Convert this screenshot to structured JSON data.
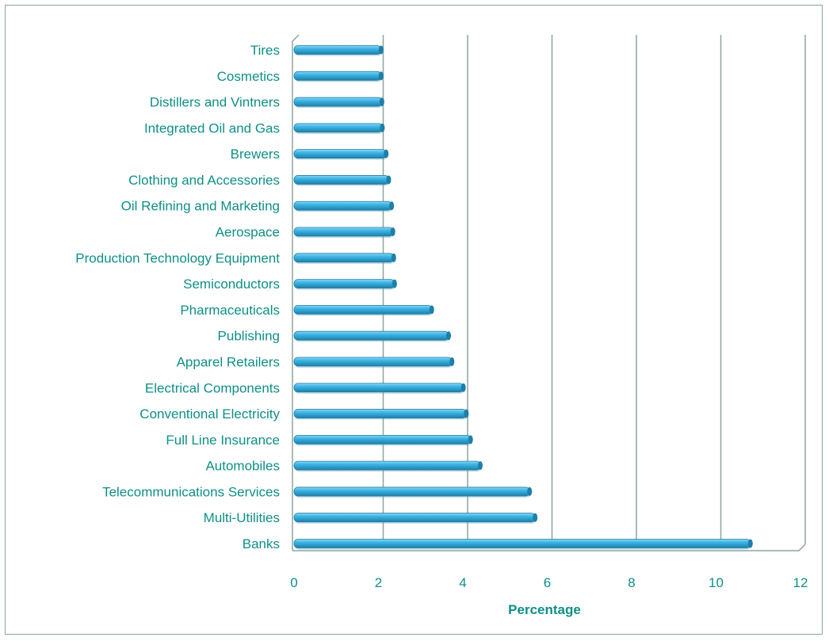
{
  "colors": {
    "bar": "#3fb6e6",
    "bar_dark": "#1e7fa8",
    "bar_light": "#8ad8f5",
    "text": "#0f8f86",
    "axis_title": "#0f8f86",
    "grid": "#8aa5a0"
  },
  "chart_data": {
    "type": "bar",
    "orientation": "horizontal",
    "style": "3d-cylinder",
    "categories": [
      "Tires",
      "Cosmetics",
      "Distillers and Vintners",
      "Integrated Oil and Gas",
      "Brewers",
      "Clothing and Accessories",
      "Oil Refining and Marketing",
      "Aerospace",
      "Production Technology Equipment",
      "Semiconductors",
      "Pharmaceuticals",
      "Publishing",
      "Apparel Retailers",
      "Electrical Components",
      "Conventional Electricity",
      "Full Line Insurance",
      "Automobiles",
      "Telecommunications Services",
      "Multi-Utilities",
      "Banks"
    ],
    "values": [
      2.1,
      2.1,
      2.12,
      2.13,
      2.22,
      2.28,
      2.35,
      2.38,
      2.4,
      2.42,
      3.3,
      3.7,
      3.78,
      4.05,
      4.12,
      4.22,
      4.45,
      5.62,
      5.75,
      10.85
    ],
    "xlabel": "Percentage",
    "ylabel": "",
    "title": "",
    "xlim": [
      0,
      12
    ],
    "xticks": [
      "0",
      "2",
      "4",
      "6",
      "8",
      "10",
      "12"
    ],
    "grid": "vertical"
  }
}
